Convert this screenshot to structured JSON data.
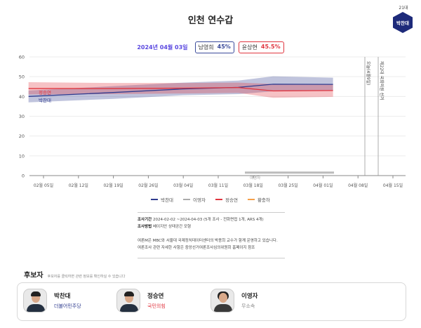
{
  "header": {
    "title": "인천 연수갑",
    "winner_term": "21대",
    "winner_name": "박찬대"
  },
  "summary": {
    "date": "2024년 04월 03일",
    "badges": [
      {
        "name": "남영희",
        "pct": "45%",
        "color": "#3a4a9a"
      },
      {
        "name": "윤상현",
        "pct": "45.5%",
        "color": "#e0353f"
      }
    ]
  },
  "chart_data": {
    "type": "line",
    "title": "인천 연수갑",
    "ylim": [
      0,
      60
    ],
    "yticks": [
      0,
      10,
      20,
      30,
      40,
      50,
      60
    ],
    "xticks": [
      "02월 05일",
      "02월 12일",
      "02월 19일",
      "02월 26일",
      "03월 04일",
      "03월 11일",
      "03월 18일",
      "03월 25일",
      "04월 01일",
      "04월 08일",
      "04월 15일"
    ],
    "grid": true,
    "legend_position": "bottom",
    "x": [
      "02월 02일",
      "02월 19일",
      "03월 04일",
      "03월 15일",
      "03월 22일",
      "04월 03일"
    ],
    "series": [
      {
        "name": "박찬대",
        "color": "#2f3c8f",
        "values": [
          40.0,
          42.0,
          43.8,
          44.6,
          46.2,
          46.1
        ],
        "lower": [
          37.0,
          38.8,
          40.6,
          41.2,
          42.6,
          42.9
        ],
        "upper": [
          43.0,
          45.2,
          47.0,
          48.0,
          50.2,
          49.5
        ]
      },
      {
        "name": "이영자",
        "color": "#aaaaaa",
        "values": [
          null,
          null,
          null,
          null,
          1.5,
          1.5
        ]
      },
      {
        "name": "정승연",
        "color": "#e0353f",
        "values": [
          44.0,
          44.0,
          44.2,
          44.5,
          42.8,
          43.0
        ],
        "lower": [
          41.0,
          41.2,
          41.5,
          41.8,
          39.3,
          39.8
        ],
        "upper": [
          47.2,
          46.8,
          46.8,
          47.0,
          46.3,
          46.2
        ]
      },
      {
        "name": "황충하",
        "color": "#f5a04a",
        "values": []
      }
    ],
    "series_labels": [
      {
        "name": "정승연",
        "color": "#e0353f"
      },
      {
        "name": "박찬대",
        "color": "#2f3c8f"
      },
      {
        "name": "이영자",
        "color": "#999999"
      }
    ],
    "annotations": [
      {
        "label": "오늘(4월9일)",
        "position": "04월 09일"
      },
      {
        "label": "제22대 국회의원 선거",
        "position": "04월 10일"
      }
    ]
  },
  "legend": [
    {
      "name": "박찬대",
      "color": "#2f3c8f"
    },
    {
      "name": "이영자",
      "color": "#aaaaaa"
    },
    {
      "name": "정승연",
      "color": "#e0353f"
    },
    {
      "name": "황충하",
      "color": "#f5a04a"
    }
  ],
  "info": {
    "period_label": "조사기간",
    "period_value": "2024-02-02 ~2024-04-03 (5개 조사 - 전화면접 1개, ARS 4개)",
    "method_label": "조사방법",
    "method_value": "베이지안 상태공간 모형",
    "note1": "여론M은 MBC와 서울대 국제정치데이터센터의 박종희 교수가 함께 운영하고 있습니다.",
    "note2": "여론조사 관련 자세한 사항은 중앙선거여론조사심의위원회 홈페이지 참조"
  },
  "candidates": {
    "heading": "후보자",
    "hint": "후보자를 클릭하면 관련 정보를 확인하실 수 있습니다",
    "items": [
      {
        "name": "박찬대",
        "party": "더불어민주당",
        "party_color": "#2f3c8f"
      },
      {
        "name": "정승연",
        "party": "국민의힘",
        "party_color": "#e0353f"
      },
      {
        "name": "이영자",
        "party": "무소속",
        "party_color": "#888888"
      }
    ]
  }
}
